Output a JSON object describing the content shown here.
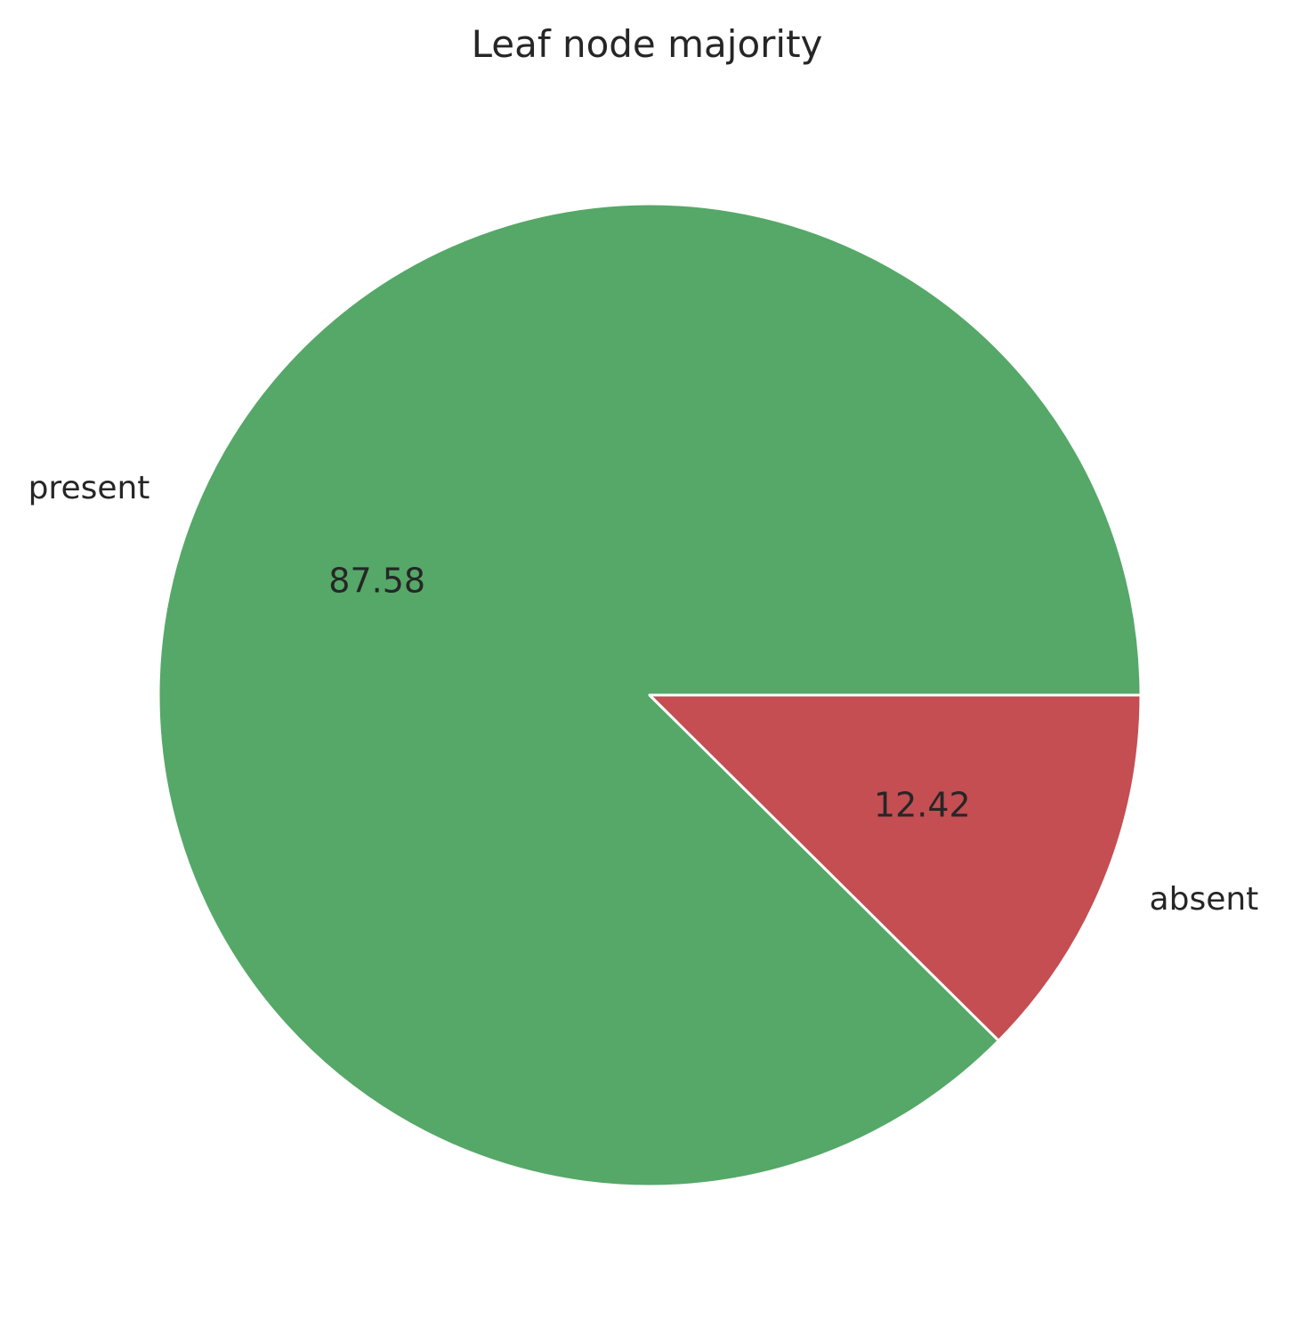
{
  "chart_data": {
    "type": "pie",
    "title": "Leaf node majority",
    "slices": [
      {
        "label": "present",
        "value": 87.58,
        "value_label": "87.58",
        "color": "#55a868"
      },
      {
        "label": "absent",
        "value": 12.42,
        "value_label": "12.42",
        "color": "#c44e52"
      }
    ],
    "start_angle_deg": 0,
    "direction": "clockwise",
    "wedge_edge_color": "#ffffff",
    "legend": "none"
  }
}
